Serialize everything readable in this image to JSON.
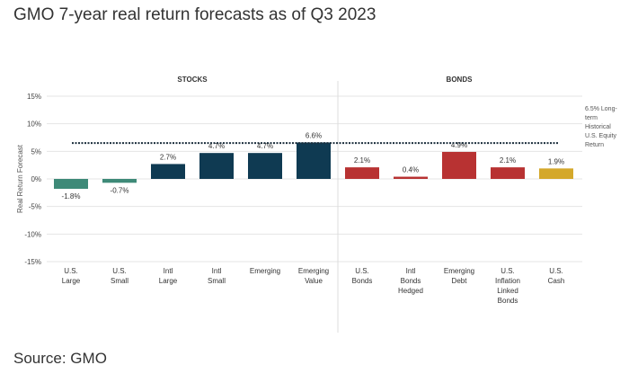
{
  "title": "GMO 7-year real return forecasts as of Q3 2023",
  "source": "Source: GMO",
  "chart_data": {
    "type": "bar",
    "ylabel": "Real Return Forecast",
    "ylim": [
      -15,
      15
    ],
    "yticks": [
      "15%",
      "10%",
      "5%",
      "0%",
      "-5%",
      "-10%",
      "-15%"
    ],
    "ytick_values": [
      15,
      10,
      5,
      0,
      -5,
      -10,
      -15
    ],
    "grid": true,
    "groups": [
      {
        "label": "STOCKS"
      },
      {
        "label": "BONDS"
      }
    ],
    "bars": [
      {
        "category": [
          "U.S.",
          "Large"
        ],
        "value": -1.8,
        "value_label": "-1.8%",
        "group": 0,
        "color": "#3e8a78"
      },
      {
        "category": [
          "U.S.",
          "Small"
        ],
        "value": -0.7,
        "value_label": "-0.7%",
        "group": 0,
        "color": "#3e8a78"
      },
      {
        "category": [
          "Intl",
          "Large"
        ],
        "value": 2.7,
        "value_label": "2.7%",
        "group": 0,
        "color": "#0f3a52"
      },
      {
        "category": [
          "Intl",
          "Small"
        ],
        "value": 4.7,
        "value_label": "4.7%",
        "group": 0,
        "color": "#0f3a52"
      },
      {
        "category": [
          "Emerging"
        ],
        "value": 4.7,
        "value_label": "4.7%",
        "group": 0,
        "color": "#0f3a52"
      },
      {
        "category": [
          "Emerging",
          "Value"
        ],
        "value": 6.6,
        "value_label": "6.6%",
        "group": 0,
        "color": "#0f3a52"
      },
      {
        "category": [
          "U.S.",
          "Bonds"
        ],
        "value": 2.1,
        "value_label": "2.1%",
        "group": 1,
        "color": "#b83232"
      },
      {
        "category": [
          "Intl",
          "Bonds",
          "Hedged"
        ],
        "value": 0.4,
        "value_label": "0.4%",
        "group": 1,
        "color": "#b83232"
      },
      {
        "category": [
          "Emerging",
          "Debt"
        ],
        "value": 4.9,
        "value_label": "4.9%",
        "group": 1,
        "color": "#b83232"
      },
      {
        "category": [
          "U.S.",
          "Inflation",
          "Linked",
          "Bonds"
        ],
        "value": 2.1,
        "value_label": "2.1%",
        "group": 1,
        "color": "#b83232"
      },
      {
        "category": [
          "U.S.",
          "Cash"
        ],
        "value": 1.9,
        "value_label": "1.9%",
        "group": 1,
        "color": "#d4a82a"
      }
    ],
    "reference_line": {
      "value": 6.5,
      "label": [
        "6.5% Long-",
        "term",
        "Historical",
        "U.S. Equity",
        "Return"
      ]
    }
  }
}
